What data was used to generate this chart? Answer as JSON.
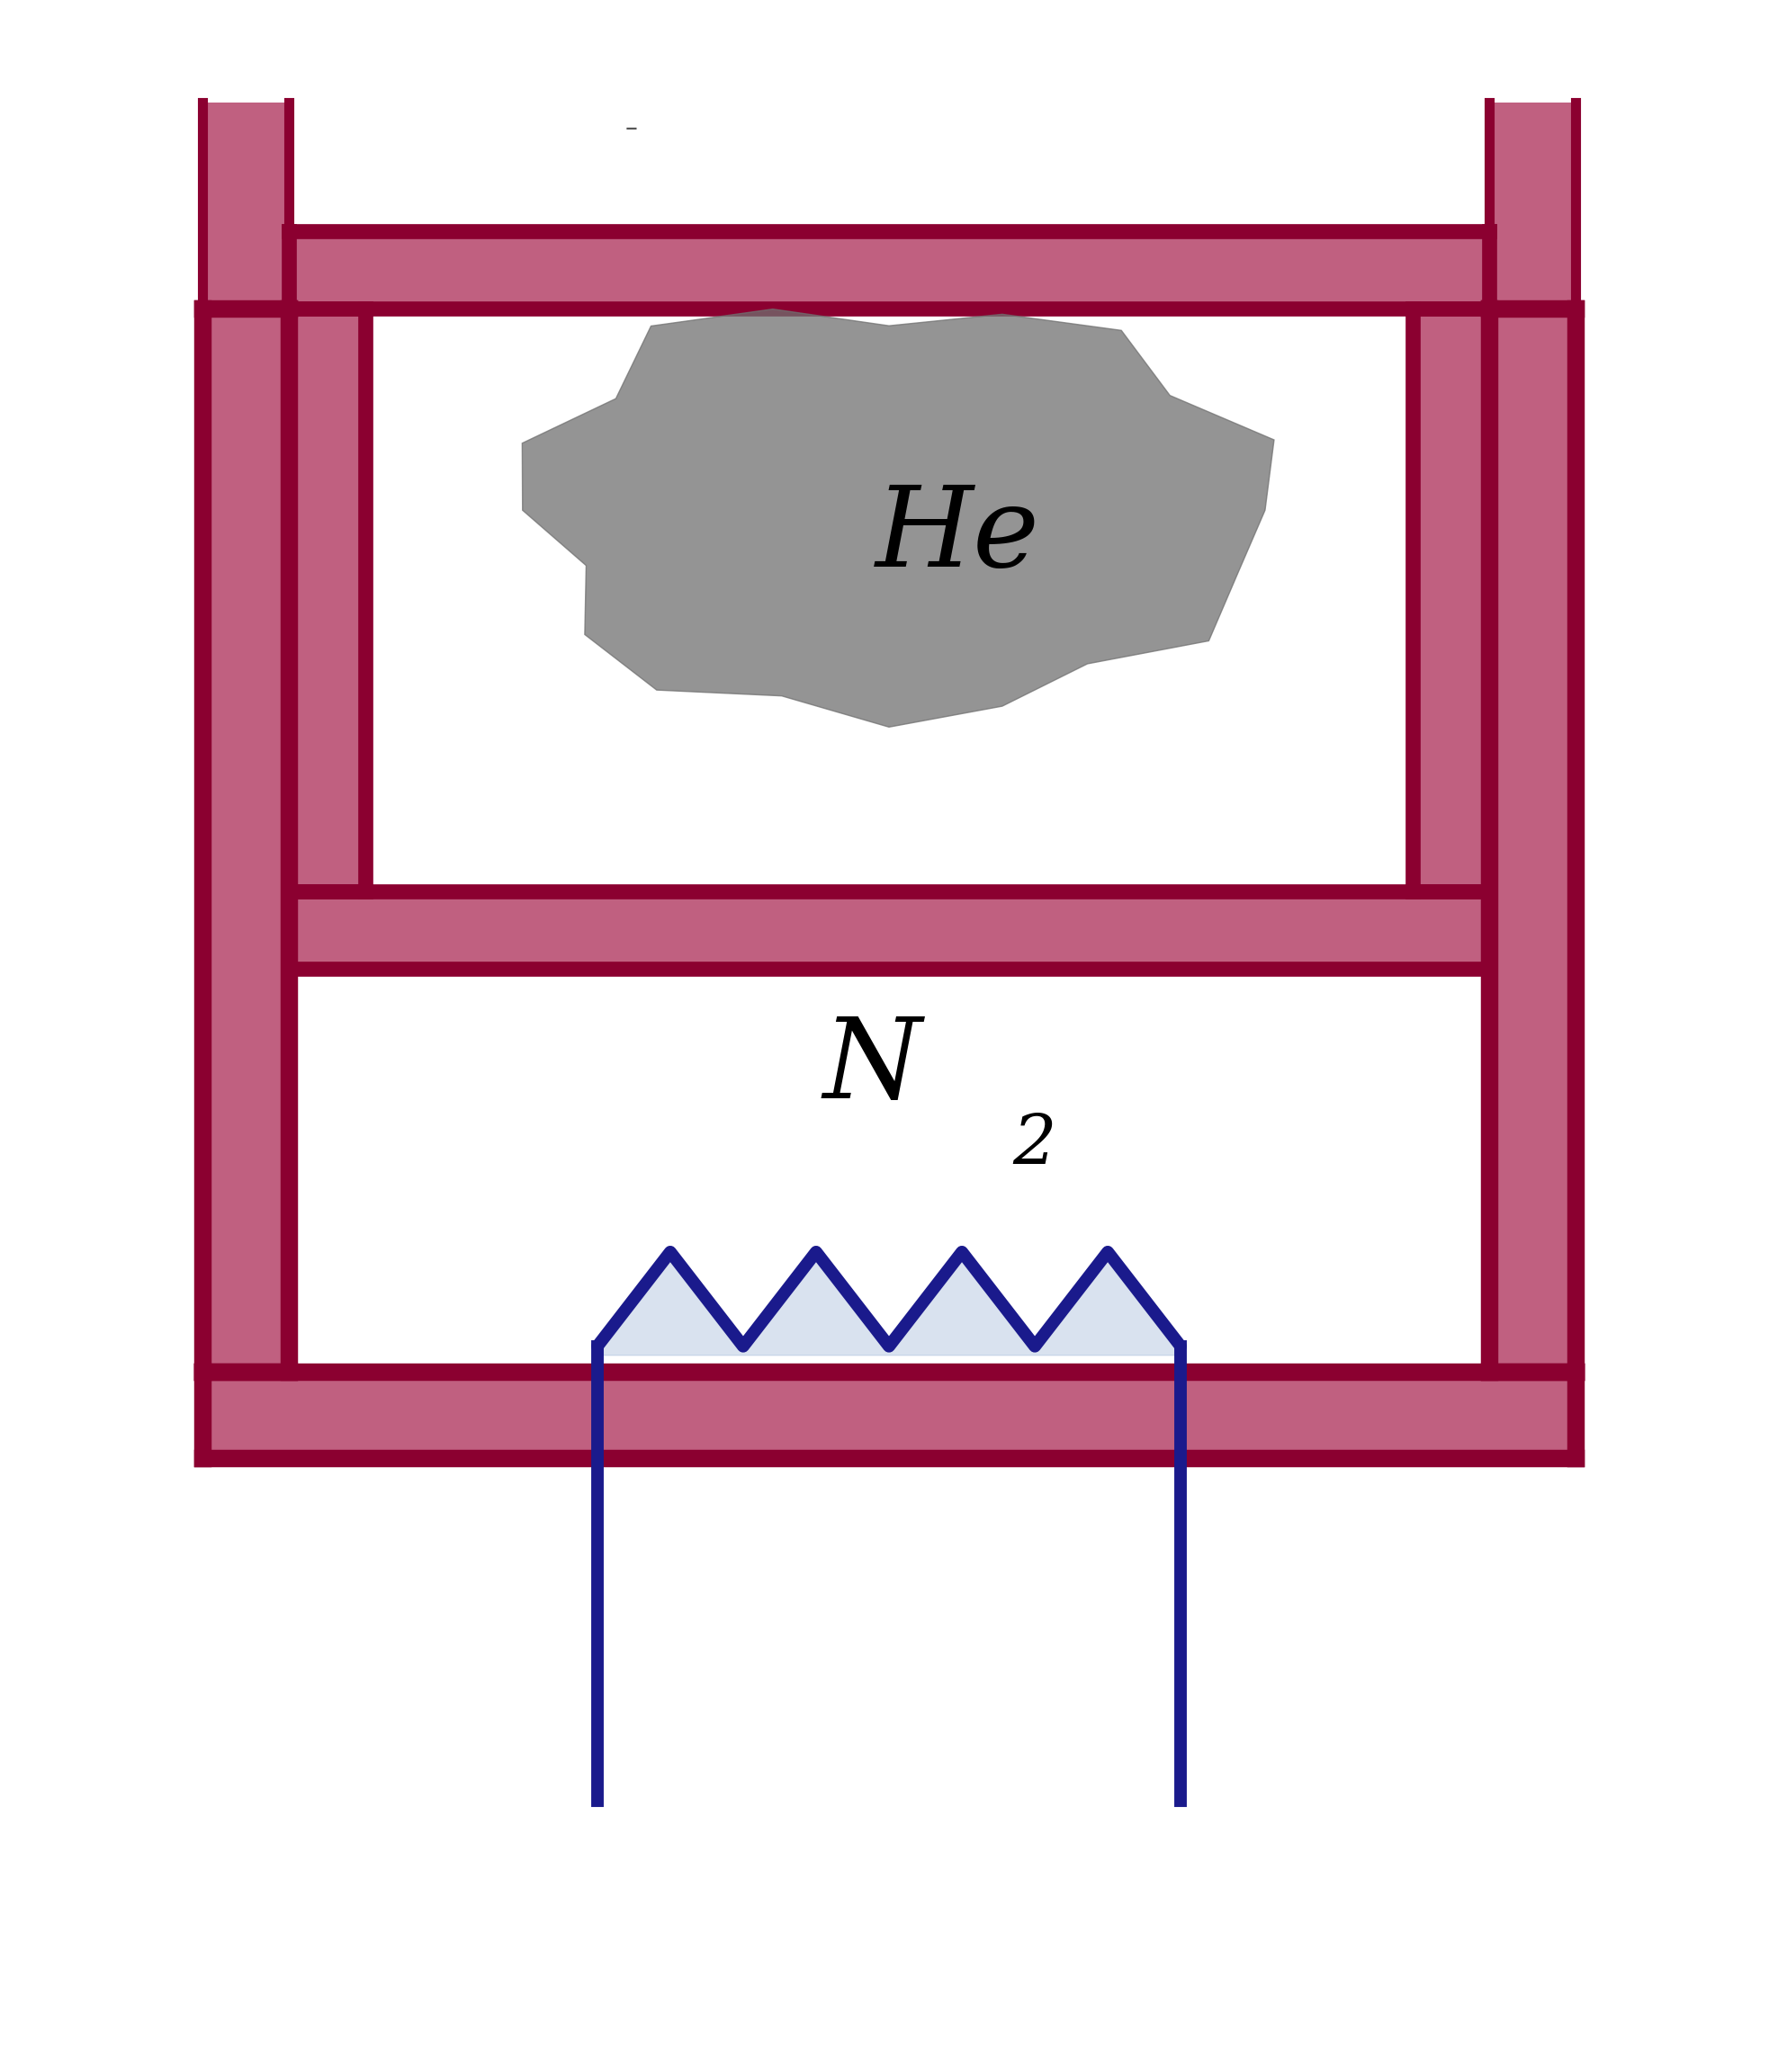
{
  "bg_color": "#ffffff",
  "crimson": "#8B0030",
  "crimson_fill": "#C06080",
  "blue_heater": "#1A1A8C",
  "blue_fill": "#A0B8D8",
  "he_blob_color": "#808080",
  "he_text": "He",
  "n2_text": "N",
  "n2_sub": "2",
  "text_color": "#000000",
  "fig_width": 19.76,
  "fig_height": 22.88,
  "lw_outer": 14,
  "lw_piston": 12,
  "lw_heater": 10,
  "lw_rod": 8
}
